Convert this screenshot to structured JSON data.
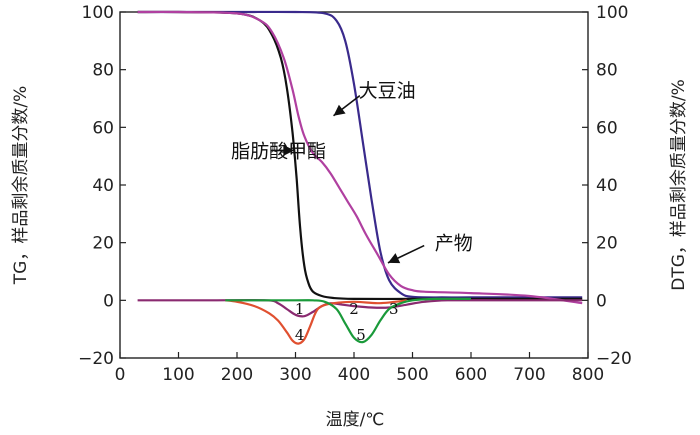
{
  "chart_data": {
    "type": "line",
    "xlabel": "温度/℃",
    "ylabel_left": "TG，样品剩余质量分数/%",
    "ylabel_right": "DTG，样品剩余质量分数/%",
    "xlim": [
      0,
      800
    ],
    "ylim": [
      -20,
      100
    ],
    "xticks": [
      "0",
      "100",
      "200",
      "300",
      "400",
      "500",
      "600",
      "700",
      "800"
    ],
    "yticks": [
      "100",
      "80",
      "60",
      "40",
      "20",
      "0",
      "−20"
    ],
    "xtick_values": [
      0,
      100,
      200,
      300,
      400,
      500,
      600,
      700,
      800
    ],
    "ytick_values": [
      100,
      80,
      60,
      40,
      20,
      0,
      -20
    ],
    "grid": false,
    "annotations": [
      {
        "text": "大豆油",
        "at": [
          408,
          73
        ],
        "arrow_from": [
          410,
          71
        ],
        "arrow_to": [
          365,
          64
        ]
      },
      {
        "text": "脂肪酸甲酯",
        "at": [
          190,
          52
        ],
        "arrow_from": [
          258,
          52
        ],
        "arrow_to": [
          298,
          52
        ]
      },
      {
        "text": "产物",
        "at": [
          538,
          20
        ],
        "arrow_from": [
          520,
          19
        ],
        "arrow_to": [
          458,
          13
        ]
      }
    ],
    "peak_labels": [
      {
        "text": "1",
        "at": [
          307,
          -3
        ]
      },
      {
        "text": "2",
        "at": [
          400,
          -3
        ]
      },
      {
        "text": "3",
        "at": [
          468,
          -3
        ]
      },
      {
        "text": "4",
        "at": [
          307,
          -12
        ]
      },
      {
        "text": "5",
        "at": [
          412,
          -12
        ]
      }
    ],
    "series": [
      {
        "color": "#3a2a8c",
        "x": [
          30,
          100,
          200,
          300,
          350,
          370,
          385,
          400,
          415,
          430,
          445,
          460,
          480,
          500,
          550,
          600,
          700,
          790
        ],
        "y": [
          100,
          100,
          100,
          100,
          99.5,
          97,
          90,
          75,
          55,
          35,
          17,
          7,
          2.5,
          1.2,
          1,
          1,
          1,
          1
        ]
      },
      {
        "color": "#111111",
        "x": [
          30,
          100,
          200,
          240,
          260,
          275,
          285,
          295,
          302,
          308,
          315,
          322,
          330,
          345,
          365,
          400,
          500,
          600,
          700,
          790
        ],
        "y": [
          100,
          100,
          99.5,
          97,
          92,
          84,
          74,
          58,
          42,
          25,
          12,
          6,
          3,
          1.5,
          0.8,
          0.5,
          0.5,
          0.5,
          0.5,
          0.5
        ]
      },
      {
        "color": "#b040a0",
        "x": [
          30,
          100,
          200,
          240,
          260,
          280,
          295,
          305,
          315,
          330,
          345,
          360,
          375,
          390,
          405,
          420,
          440,
          460,
          480,
          500,
          520,
          600,
          700,
          790
        ],
        "y": [
          100,
          100,
          99.5,
          97,
          93,
          84,
          73,
          64,
          57,
          51,
          48,
          44,
          39,
          34,
          29,
          23,
          16,
          9,
          5,
          3.5,
          3,
          2.5,
          1.5,
          -1
        ]
      },
      {
        "color": "#8a2a70",
        "x": [
          30,
          150,
          250,
          270,
          285,
          300,
          315,
          330,
          345,
          360,
          380,
          400,
          430,
          460,
          490,
          520,
          560,
          650,
          720,
          790
        ],
        "y": [
          0,
          0,
          0,
          -1,
          -3,
          -5,
          -5.5,
          -4,
          -2,
          -1,
          -1.5,
          -2,
          -2.5,
          -2.5,
          -1.5,
          -0.5,
          0,
          0,
          0,
          0
        ]
      },
      {
        "color": "#e05030",
        "x": [
          180,
          200,
          230,
          255,
          270,
          285,
          295,
          305,
          315,
          325,
          335,
          345,
          365,
          400,
          440,
          470,
          490
        ],
        "y": [
          0,
          -0.5,
          -2,
          -4.5,
          -7,
          -11,
          -14,
          -15,
          -13.5,
          -9,
          -4,
          -2,
          -1,
          -0.5,
          -1,
          -0.5,
          0
        ]
      },
      {
        "color": "#1a9a3a",
        "x": [
          180,
          300,
          330,
          350,
          370,
          385,
          400,
          415,
          430,
          445,
          460,
          480,
          500,
          540,
          600
        ],
        "y": [
          0,
          0,
          0,
          -0.5,
          -3,
          -8,
          -13,
          -14.5,
          -12,
          -7,
          -3,
          -1,
          0,
          0.5,
          0.5
        ]
      }
    ]
  }
}
